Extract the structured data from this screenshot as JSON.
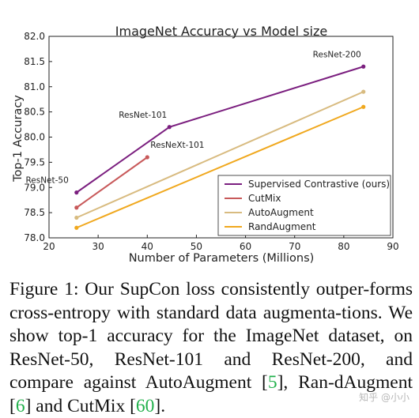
{
  "chart_data": {
    "type": "line",
    "title": "ImageNet Accuracy vs Model size",
    "xlabel": "Number of Parameters (Millions)",
    "ylabel": "Top-1 Accuracy",
    "xlim": [
      20,
      90
    ],
    "ylim": [
      78.0,
      82.0
    ],
    "xticks": [
      "20",
      "30",
      "40",
      "50",
      "60",
      "70",
      "80",
      "90"
    ],
    "yticks": [
      "78.0",
      "78.5",
      "79.0",
      "79.5",
      "80.0",
      "80.5",
      "81.0",
      "81.5",
      "82.0"
    ],
    "grid": false,
    "legend_position": "lower-right",
    "series": [
      {
        "name": "Supervised Contrastive (ours)",
        "color": "#7b1f7f",
        "x": [
          25.6,
          44.5,
          84
        ],
        "y": [
          78.9,
          80.2,
          81.4
        ]
      },
      {
        "name": "CutMix",
        "color": "#c8595a",
        "x": [
          25.6,
          40
        ],
        "y": [
          78.6,
          79.6
        ]
      },
      {
        "name": "AutoAugment",
        "color": "#d8bb80",
        "x": [
          25.6,
          84
        ],
        "y": [
          78.4,
          80.9
        ]
      },
      {
        "name": "RandAugment",
        "color": "#f0a81e",
        "x": [
          25.6,
          84
        ],
        "y": [
          78.2,
          80.6
        ]
      }
    ],
    "annotations": [
      {
        "text": "ResNet-50",
        "x": 25.6,
        "y": 78.9,
        "anchor": "end"
      },
      {
        "text": "ResNet-101",
        "x": 44.5,
        "y": 80.2,
        "anchor": "end"
      },
      {
        "text": "ResNeXt-101",
        "x": 40,
        "y": 79.6,
        "anchor": "start"
      },
      {
        "text": "ResNet-200",
        "x": 84,
        "y": 81.4,
        "anchor": "end"
      }
    ]
  },
  "caption": {
    "lead": "Figure 1:  Our SupCon loss consistently outper-forms cross-entropy with standard data augmenta-tions. We show top-1 accuracy for the ImageNet dataset, on ResNet-50, ResNet-101 and ResNet-200, and compare against AutoAugment [",
    "cite1": "5",
    "mid1": "], Ran-dAugment [",
    "cite2": "6",
    "mid2": "] and CutMix [",
    "cite3": "60",
    "tail": "]."
  },
  "watermark": "知乎 @小小"
}
